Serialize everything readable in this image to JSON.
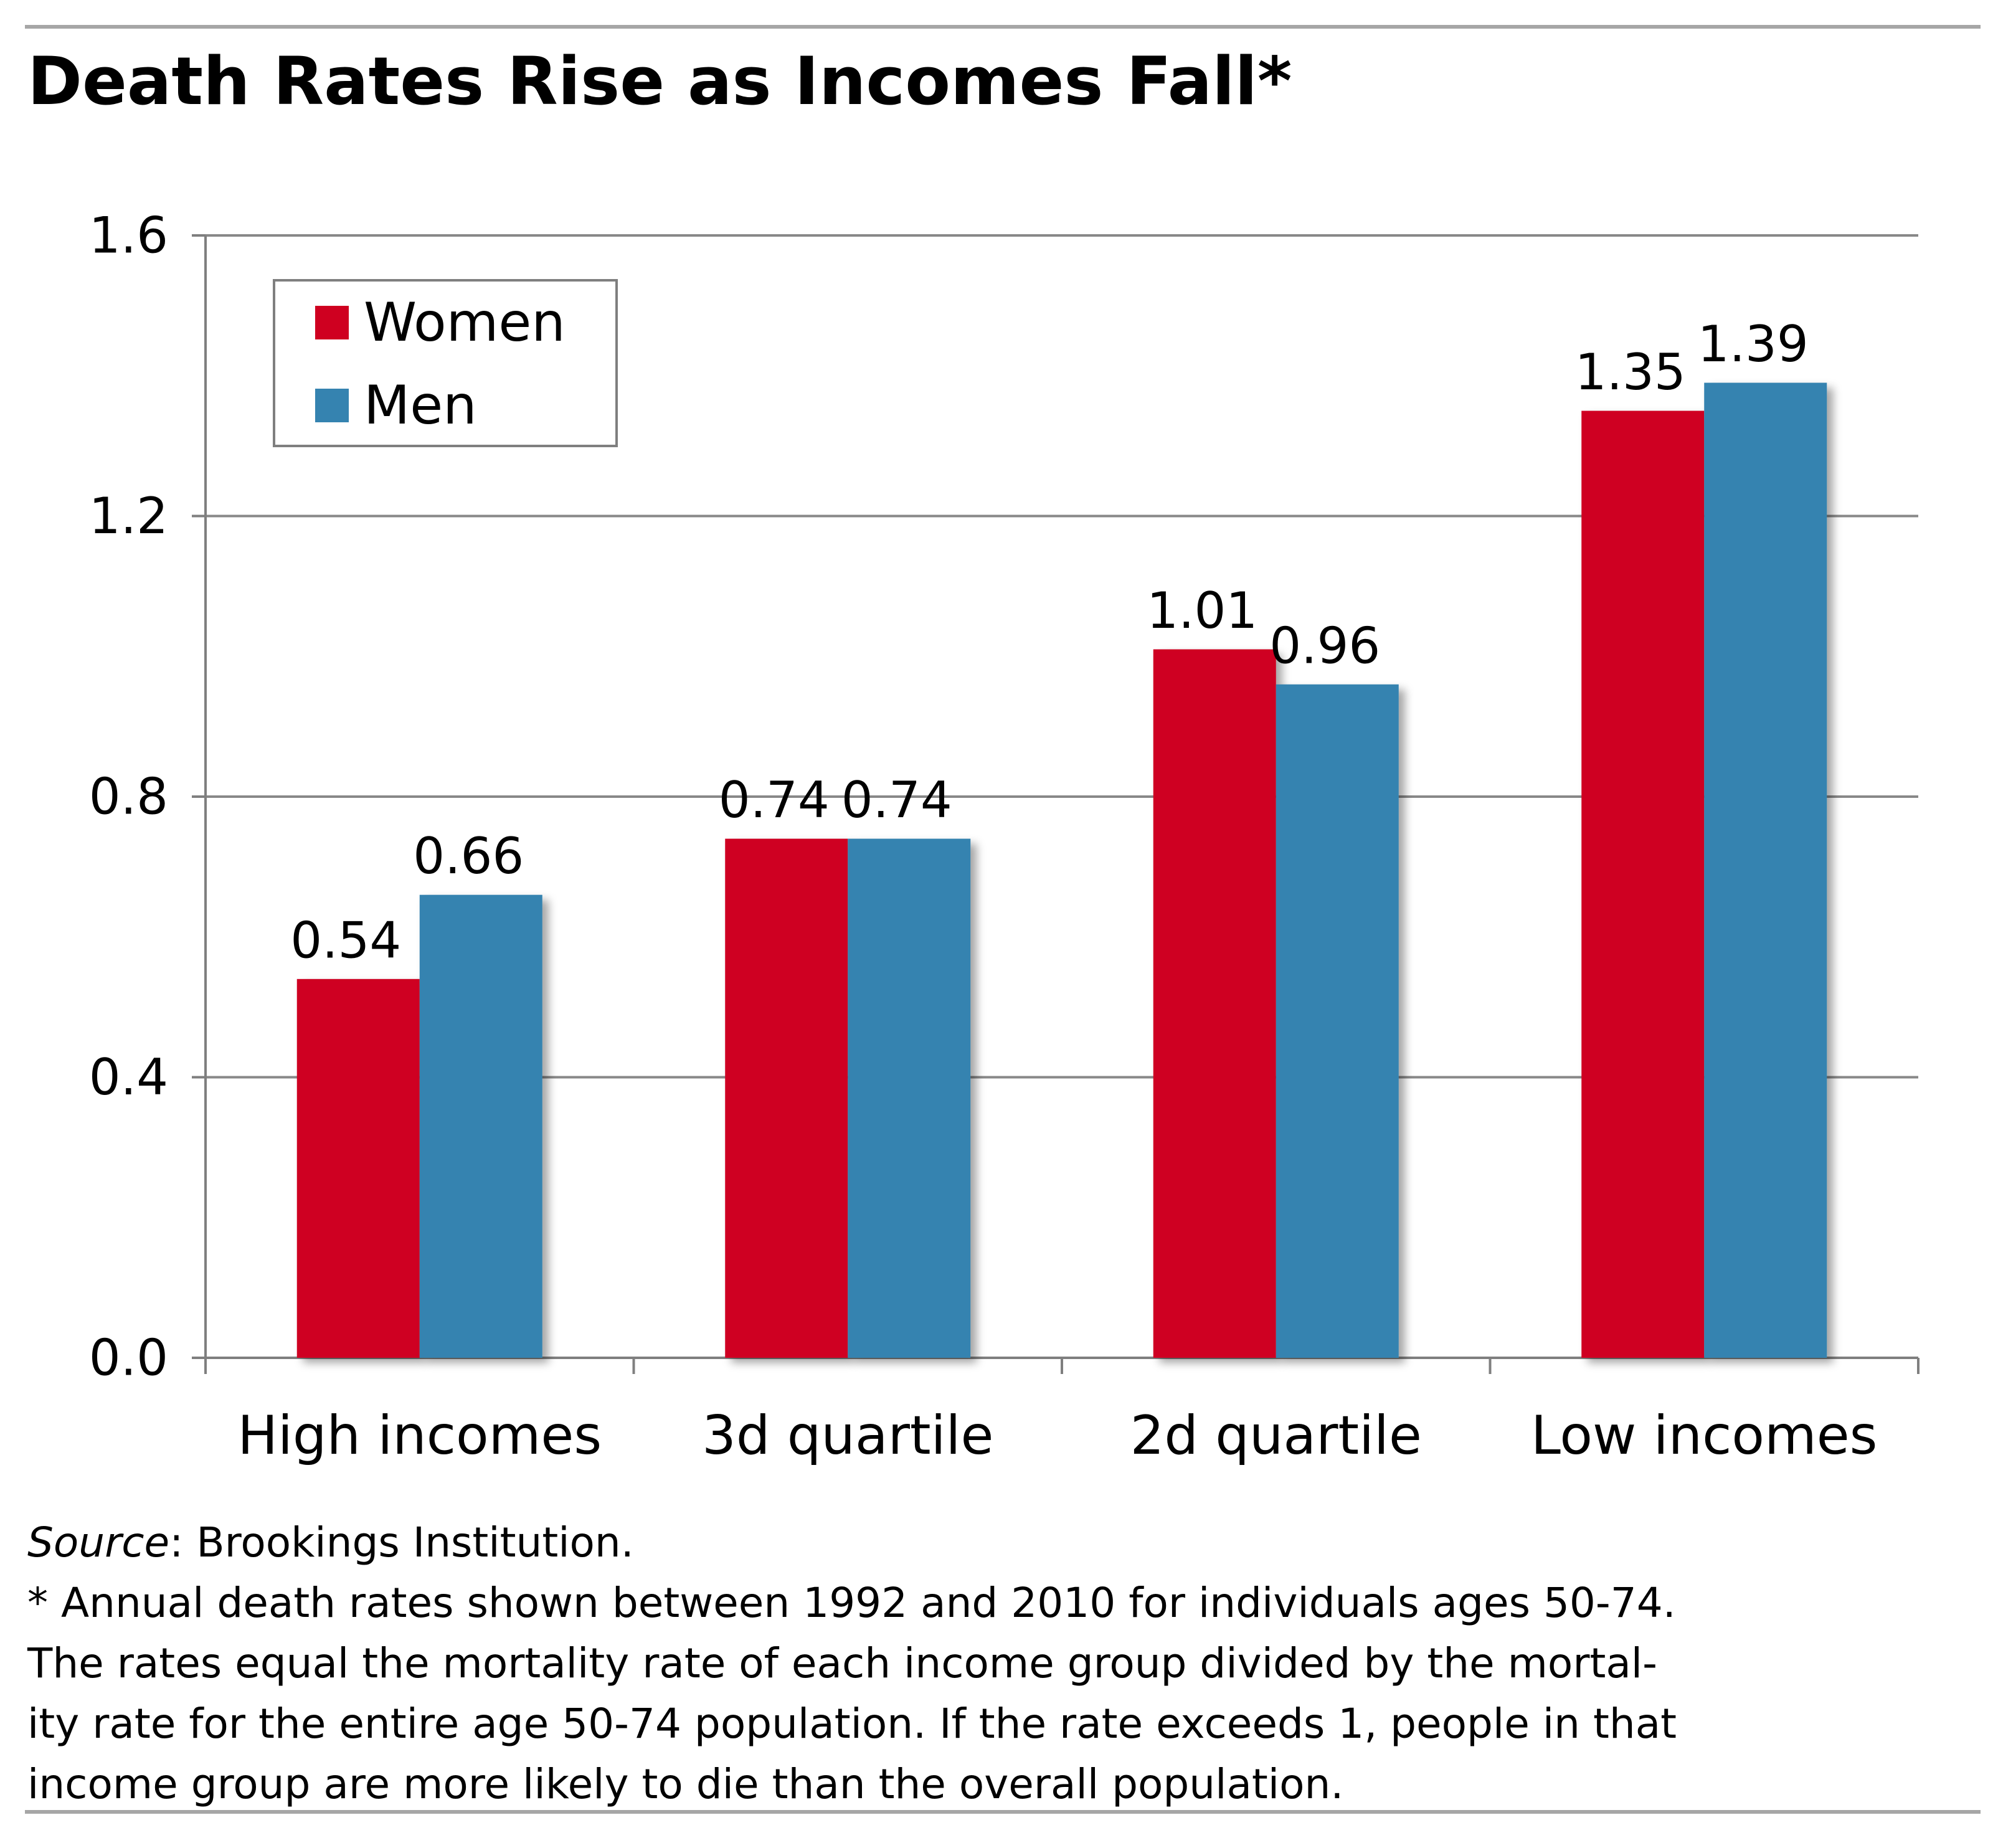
{
  "title": "Death Rates Rise as Incomes Fall*",
  "colors": {
    "women": "#cf0020",
    "men": "#3583b0",
    "grid": "#888888",
    "axis": "#7f7f7f"
  },
  "chart_data": {
    "type": "bar",
    "title": "Death Rates Rise as Incomes Fall*",
    "xlabel": "",
    "ylabel": "",
    "categories": [
      "High incomes",
      "3d quartile",
      "2d quartile",
      "Low incomes"
    ],
    "series": [
      {
        "name": "Women",
        "values": [
          0.54,
          0.74,
          1.01,
          1.35
        ],
        "labels": [
          "0.54",
          "0.74",
          "1.01",
          "1.35"
        ]
      },
      {
        "name": "Men",
        "values": [
          0.66,
          0.74,
          0.96,
          1.39
        ],
        "labels": [
          "0.66",
          "0.74",
          "0.96",
          "1.39"
        ]
      }
    ],
    "ylim": [
      0,
      1.6
    ],
    "yticks": [
      0,
      0.4,
      0.8,
      1.2,
      1.6
    ],
    "ytick_labels": [
      "0.0",
      "0.4",
      "0.8",
      "1.2",
      "1.6"
    ],
    "grid": true,
    "legend": "top-left"
  },
  "notes": {
    "source_label": "Source",
    "source_text": ": Brookings Institution.",
    "footnote_lines": [
      "* Annual death rates shown between 1992 and 2010 for individuals ages 50-74.",
      "The rates equal the mortality rate of each income group divided by the mortal-",
      "ity rate for the entire age 50-74 population.  If the rate exceeds 1, people in that",
      "income group are more likely to die than the overall population."
    ]
  }
}
